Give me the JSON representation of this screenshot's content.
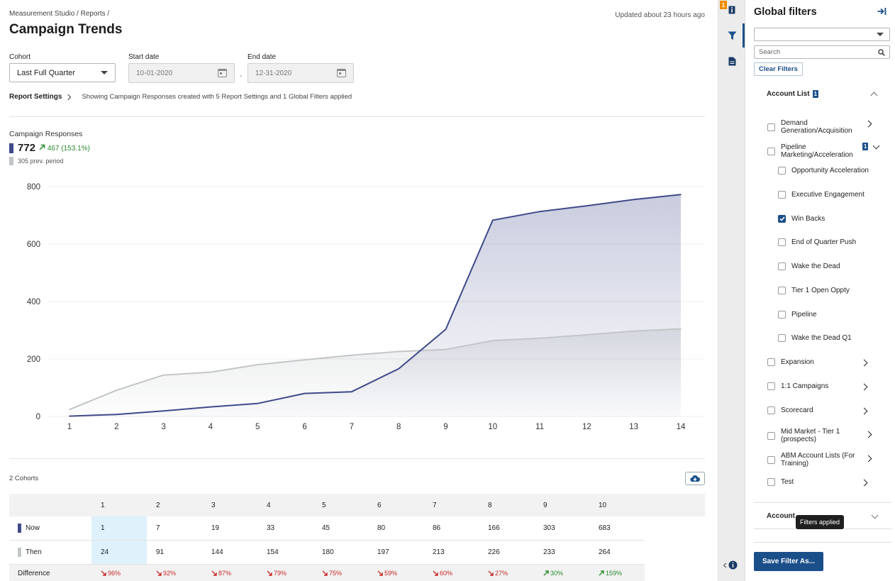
{
  "header": {
    "breadcrumb": "Measurement Studio / Reports /",
    "title": "Campaign Trends",
    "updated": "Updated about 23 hours ago"
  },
  "controls": {
    "cohort_label": "Cohort",
    "cohort_value": "Last Full Quarter",
    "start_label": "Start date",
    "start_value": "10-01-2020",
    "end_label": "End date",
    "end_value": "12-31-2020",
    "dash": "-"
  },
  "settings": {
    "link": "Report Settings",
    "description": "Showing Campaign Responses created with 5 Report Settings and 1 Global Filters applied"
  },
  "metric": {
    "title": "Campaign Responses",
    "value": "772",
    "delta": "467 (153.1%)",
    "prev": "305 prev. period",
    "now_color": "#3f4a8a",
    "prev_color": "#c2c6c8"
  },
  "chart_data": {
    "type": "area",
    "x": [
      1,
      2,
      3,
      4,
      5,
      6,
      7,
      8,
      9,
      10,
      11,
      12,
      13,
      14
    ],
    "series": [
      {
        "name": "Now",
        "values": [
          1,
          7,
          19,
          33,
          45,
          80,
          86,
          166,
          303,
          683,
          713,
          733,
          755,
          772
        ]
      },
      {
        "name": "Then",
        "values": [
          24,
          91,
          144,
          154,
          180,
          197,
          213,
          226,
          233,
          264,
          272,
          284,
          297,
          305
        ]
      }
    ],
    "yticks": [
      0,
      200,
      400,
      600,
      800
    ],
    "ylim": [
      0,
      800
    ],
    "grid": true
  },
  "table": {
    "cohorts_label": "2 Cohorts",
    "columns": [
      "1",
      "2",
      "3",
      "4",
      "5",
      "6",
      "7",
      "8",
      "9",
      "10"
    ],
    "rows": [
      {
        "label": "Now",
        "values": [
          "1",
          "7",
          "19",
          "33",
          "45",
          "80",
          "86",
          "166",
          "303",
          "683"
        ]
      },
      {
        "label": "Then",
        "values": [
          "24",
          "91",
          "144",
          "154",
          "180",
          "197",
          "213",
          "226",
          "233",
          "264"
        ]
      }
    ],
    "diff_label": "Difference",
    "diffs": [
      {
        "text": "96%",
        "dir": "down"
      },
      {
        "text": "92%",
        "dir": "down"
      },
      {
        "text": "87%",
        "dir": "down"
      },
      {
        "text": "79%",
        "dir": "down"
      },
      {
        "text": "75%",
        "dir": "down"
      },
      {
        "text": "59%",
        "dir": "down"
      },
      {
        "text": "60%",
        "dir": "down"
      },
      {
        "text": "27%",
        "dir": "down"
      },
      {
        "text": "30%",
        "dir": "up"
      },
      {
        "text": "159%",
        "dir": "up"
      }
    ]
  },
  "rail": {
    "badge": "1",
    "icons": [
      "info-icon",
      "filter-icon",
      "document-icon"
    ]
  },
  "panel": {
    "title": "Global filters",
    "search_placeholder": "Search",
    "clear_label": "Clear Filters",
    "account_list": {
      "label": "Account List",
      "count": "1"
    },
    "items": [
      {
        "label": "Demand Generation/Acquisition",
        "checked": false,
        "expand": "right"
      },
      {
        "label": "Pipeline Marketing/Acceleration",
        "checked": false,
        "expand": "down",
        "count": "1"
      }
    ],
    "sub_items": [
      {
        "label": "Opportunity Acceleration",
        "checked": false
      },
      {
        "label": "Executive Engagement",
        "checked": false
      },
      {
        "label": "Win Backs",
        "checked": true
      },
      {
        "label": "End of Quarter Push",
        "checked": false
      },
      {
        "label": "Wake the Dead",
        "checked": false
      },
      {
        "label": "Tier 1 Open Oppty",
        "checked": false
      },
      {
        "label": "Pipeline",
        "checked": false
      },
      {
        "label": "Wake the Dead Q1",
        "checked": false
      }
    ],
    "more_items": [
      {
        "label": "Expansion",
        "checked": false
      },
      {
        "label": "1:1 Campaigns",
        "checked": false
      },
      {
        "label": "Scorecard",
        "checked": false
      },
      {
        "label": "Mid Market - Tier 1 (prospects)",
        "checked": false
      },
      {
        "label": "ABM Account Lists (For Training)",
        "checked": false
      },
      {
        "label": "Test",
        "checked": false
      }
    ],
    "account_label": "Account",
    "tooltip": "Filters applied",
    "save_label": "Save Filter As..."
  }
}
